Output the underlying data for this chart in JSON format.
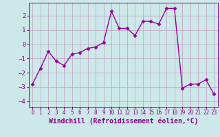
{
  "x": [
    0,
    1,
    2,
    3,
    4,
    5,
    6,
    7,
    8,
    9,
    10,
    11,
    12,
    13,
    14,
    15,
    16,
    17,
    18,
    19,
    20,
    21,
    22,
    23
  ],
  "y": [
    -2.8,
    -1.7,
    -0.5,
    -1.2,
    -1.5,
    -0.7,
    -0.6,
    -0.3,
    -0.2,
    0.1,
    2.3,
    1.1,
    1.1,
    0.6,
    1.6,
    1.6,
    1.4,
    2.5,
    2.5,
    -3.1,
    -2.8,
    -2.8,
    -2.5,
    -3.5
  ],
  "line_color": "#990099",
  "marker": "D",
  "marker_size": 2.5,
  "linewidth": 1.0,
  "xlabel": "Windchill (Refroidissement éolien,°C)",
  "xlim": [
    -0.5,
    23.5
  ],
  "ylim": [
    -4.4,
    2.9
  ],
  "yticks": [
    -4,
    -3,
    -2,
    -1,
    0,
    1,
    2
  ],
  "xtick_labels": [
    "0",
    "1",
    "2",
    "3",
    "4",
    "5",
    "6",
    "7",
    "8",
    "9",
    "10",
    "11",
    "12",
    "13",
    "14",
    "15",
    "16",
    "17",
    "18",
    "19",
    "20",
    "21",
    "22",
    "23"
  ],
  "bg_color": "#cce8e8",
  "grid_color": "#c0a0c0",
  "fig_bg": "#cce8e8",
  "tick_color": "#880088",
  "xlabel_color": "#880088"
}
